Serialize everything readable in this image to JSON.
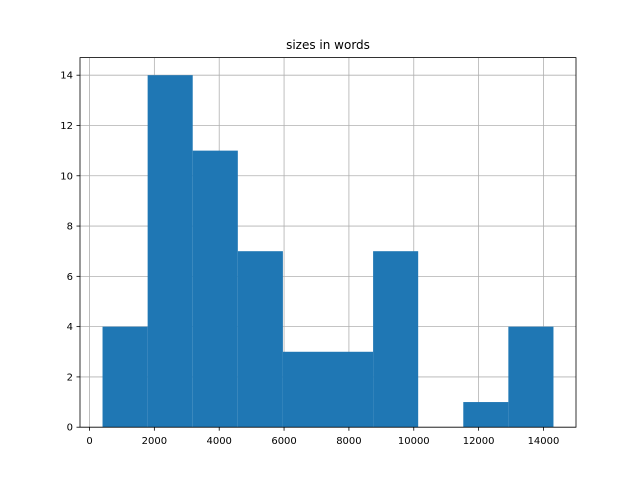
{
  "chart_data": {
    "type": "histogram",
    "title": "sizes in words",
    "bins": [
      402,
      1793,
      3183,
      4574,
      5964,
      7355,
      8746,
      10136,
      11527,
      12917,
      14308
    ],
    "counts": [
      4,
      14,
      11,
      7,
      3,
      3,
      7,
      0,
      1,
      4
    ],
    "color": "#1f77b4",
    "xlim": [
      -293,
      15003
    ],
    "xticks": [
      0,
      2000,
      4000,
      6000,
      8000,
      10000,
      12000,
      14000
    ],
    "ylim": [
      0,
      14.7
    ],
    "yticks": [
      0,
      2,
      4,
      6,
      8,
      10,
      12,
      14
    ],
    "grid": true
  }
}
